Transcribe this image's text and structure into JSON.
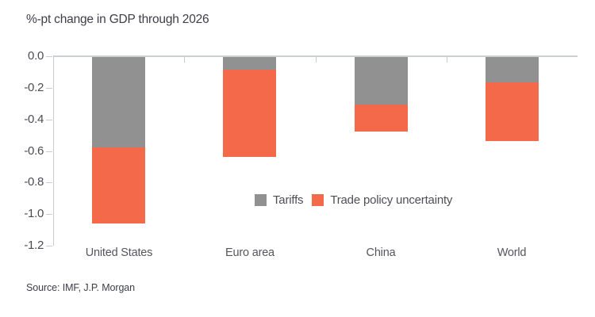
{
  "title": "%-pt change in GDP through 2026",
  "source": "Source: IMF, J.P. Morgan",
  "colors": {
    "tariffs": "#919191",
    "trade_policy_uncertainty": "#f4694a",
    "axis": "#c9ccce",
    "title_text": "#3d3e46",
    "axis_text": "#4b4c52"
  },
  "legend": {
    "items": [
      {
        "label": "Tariffs",
        "color": "#919191"
      },
      {
        "label": "Trade policy uncertainty",
        "color": "#f4694a"
      }
    ]
  },
  "chart_data": {
    "type": "bar",
    "stacked": true,
    "orientation": "vertical",
    "title": "%-pt change in GDP through 2026",
    "xlabel": "",
    "ylabel": "%-pt change in GDP",
    "categories": [
      "United States",
      "Euro area",
      "China",
      "World"
    ],
    "series": [
      {
        "name": "Tariffs",
        "color": "#919191",
        "values": [
          -0.57,
          -0.08,
          -0.3,
          -0.16
        ]
      },
      {
        "name": "Trade policy uncertainty",
        "color": "#f4694a",
        "values": [
          -0.48,
          -0.55,
          -0.17,
          -0.37
        ]
      }
    ],
    "totals": [
      -1.05,
      -0.63,
      -0.47,
      -0.53
    ],
    "ylim": [
      -1.2,
      0
    ],
    "y_ticks": [
      "0.0",
      "-0.2",
      "-0.4",
      "-0.6",
      "-0.8",
      "-1.0",
      "-1.2"
    ],
    "grid": false,
    "legend_position": "inside-right-middle",
    "source": "Source: IMF, J.P. Morgan"
  }
}
